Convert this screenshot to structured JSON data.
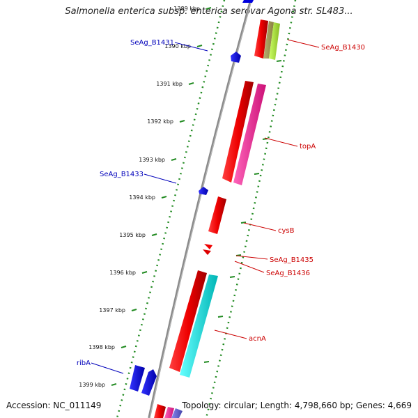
{
  "title": "Salmonella enterica subsp. enterica serovar Agona str. SL483...",
  "footer": {
    "accession": "Accession: NC_011149",
    "summary": "Topology: circular; Length: 4,798,660 bp; Genes: 4,669"
  },
  "ticks": [
    {
      "label": "1389 kbp"
    },
    {
      "label": "1390 kbp"
    },
    {
      "label": "1391 kbp"
    },
    {
      "label": "1392 kbp"
    },
    {
      "label": "1393 kbp"
    },
    {
      "label": "1394 kbp"
    },
    {
      "label": "1395 kbp"
    },
    {
      "label": "1396 kbp"
    },
    {
      "label": "1397 kbp"
    },
    {
      "label": "1398 kbp"
    },
    {
      "label": "1399 kbp"
    }
  ],
  "genes": [
    {
      "name": "SeAg_B1430",
      "strand": "forward",
      "color": "#cc0000"
    },
    {
      "name": "topA",
      "strand": "forward",
      "color": "#cc0000"
    },
    {
      "name": "cysB",
      "strand": "forward",
      "color": "#cc0000"
    },
    {
      "name": "SeAg_B1435",
      "strand": "forward",
      "color": "#cc0000"
    },
    {
      "name": "SeAg_B1436",
      "strand": "forward",
      "color": "#cc0000"
    },
    {
      "name": "acnA",
      "strand": "forward",
      "color": "#cc0000"
    },
    {
      "name": "SeAg_B1431",
      "strand": "reverse",
      "color": "#0000bb"
    },
    {
      "name": "SeAg_B1433",
      "strand": "reverse",
      "color": "#0000bb"
    },
    {
      "name": "ribA",
      "strand": "reverse",
      "color": "#0000bb"
    }
  ],
  "colors": {
    "backbone": "#8a8a8a",
    "forward_feature": "#ee0000",
    "reverse_feature": "#0000dd",
    "rna_feature": "#ff3399",
    "cds_alt": "#00e5e5",
    "tick_green": "#228b22"
  }
}
